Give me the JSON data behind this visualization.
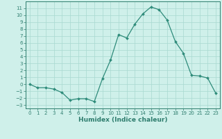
{
  "x": [
    0,
    1,
    2,
    3,
    4,
    5,
    6,
    7,
    8,
    9,
    10,
    11,
    12,
    13,
    14,
    15,
    16,
    17,
    18,
    19,
    20,
    21,
    22,
    23
  ],
  "y": [
    0,
    -0.5,
    -0.5,
    -0.7,
    -1.2,
    -2.3,
    -2.1,
    -2.1,
    -2.5,
    0.8,
    3.5,
    7.2,
    6.7,
    8.7,
    10.2,
    11.2,
    10.8,
    9.3,
    6.2,
    4.5,
    1.3,
    1.2,
    0.9,
    -1.3
  ],
  "line_color": "#2e8b7a",
  "marker": "D",
  "marker_size": 2.0,
  "line_width": 0.9,
  "xlabel": "Humidex (Indice chaleur)",
  "ylim": [
    -3.5,
    12
  ],
  "xlim": [
    -0.5,
    23.5
  ],
  "bg_color": "#cff0ea",
  "grid_color": "#a8d8d0",
  "spine_color": "#2e7d6e",
  "tick_fontsize": 5.0,
  "label_fontsize": 6.5,
  "yticks": [
    -3,
    -2,
    -1,
    0,
    1,
    2,
    3,
    4,
    5,
    6,
    7,
    8,
    9,
    10,
    11
  ],
  "xticks": [
    0,
    1,
    2,
    3,
    4,
    5,
    6,
    7,
    8,
    9,
    10,
    11,
    12,
    13,
    14,
    15,
    16,
    17,
    18,
    19,
    20,
    21,
    22,
    23
  ]
}
